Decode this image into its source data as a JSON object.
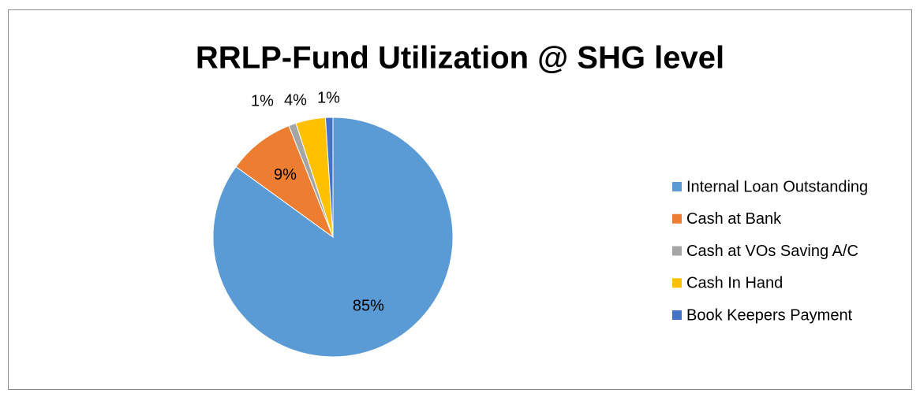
{
  "chart_data": {
    "type": "pie",
    "title": "RRLP-Fund Utilization @ SHG level",
    "categories": [
      "Internal Loan Outstanding",
      "Cash at Bank",
      "Cash at VOs Saving A/C",
      "Cash In Hand",
      "Book Keepers Payment"
    ],
    "values": [
      85,
      9,
      1,
      4,
      1
    ],
    "value_labels": [
      "85%",
      "9%",
      "1%",
      "4%",
      "1%"
    ],
    "colors": [
      "#5b9bd5",
      "#ed7d31",
      "#a5a5a5",
      "#ffc000",
      "#4472c4"
    ],
    "legend": "right"
  }
}
